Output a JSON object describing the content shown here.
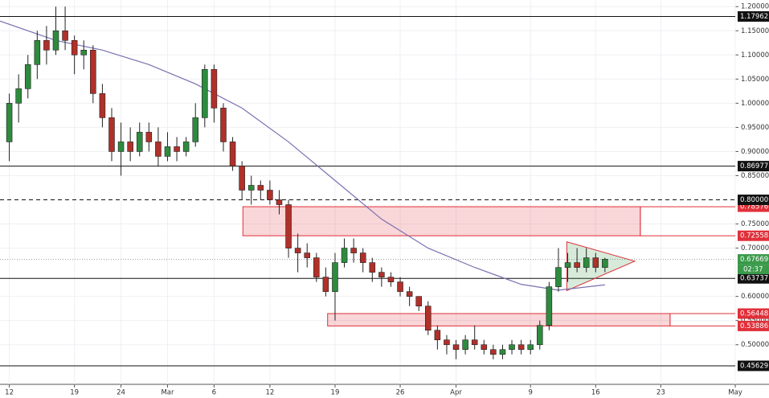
{
  "chart_data": {
    "type": "candlestick",
    "x": [
      0,
      1,
      2,
      3,
      4,
      5,
      6,
      7,
      8,
      9,
      10,
      11,
      12,
      13,
      14,
      15,
      16,
      17,
      18,
      19,
      20,
      21,
      22,
      23,
      24,
      25,
      26,
      27,
      28,
      29,
      30,
      31,
      32,
      33,
      34,
      35,
      36,
      37,
      38,
      39,
      40,
      41,
      42,
      43,
      44,
      45,
      46,
      47,
      48,
      49,
      50,
      51,
      52,
      53,
      54,
      55,
      56,
      57,
      58,
      59,
      60,
      61,
      62,
      63,
      64
    ],
    "open": [
      0.92,
      1.0,
      1.03,
      1.08,
      1.13,
      1.11,
      1.15,
      1.13,
      1.1,
      1.11,
      1.02,
      0.97,
      0.9,
      0.92,
      0.9,
      0.94,
      0.92,
      0.89,
      0.91,
      0.9,
      0.92,
      0.97,
      1.07,
      0.99,
      0.92,
      0.87,
      0.82,
      0.83,
      0.82,
      0.8,
      0.79,
      0.7,
      0.69,
      0.68,
      0.64,
      0.61,
      0.67,
      0.7,
      0.69,
      0.67,
      0.65,
      0.64,
      0.63,
      0.61,
      0.6,
      0.58,
      0.53,
      0.51,
      0.5,
      0.49,
      0.51,
      0.5,
      0.49,
      0.48,
      0.49,
      0.5,
      0.49,
      0.5,
      0.54,
      0.62,
      0.66,
      0.67,
      0.66,
      0.68,
      0.66
    ],
    "high": [
      1.02,
      1.06,
      1.1,
      1.15,
      1.16,
      1.2,
      1.2,
      1.14,
      1.13,
      1.12,
      1.04,
      0.99,
      0.96,
      0.95,
      0.96,
      0.96,
      0.95,
      0.94,
      0.93,
      0.93,
      1.0,
      1.08,
      1.08,
      1.0,
      0.93,
      0.88,
      0.85,
      0.84,
      0.84,
      0.82,
      0.8,
      0.73,
      0.71,
      0.69,
      0.66,
      0.69,
      0.72,
      0.72,
      0.7,
      0.68,
      0.66,
      0.65,
      0.64,
      0.62,
      0.6,
      0.59,
      0.54,
      0.52,
      0.51,
      0.52,
      0.54,
      0.51,
      0.5,
      0.5,
      0.51,
      0.51,
      0.51,
      0.55,
      0.63,
      0.7,
      0.69,
      0.7,
      0.7,
      0.69,
      0.68
    ],
    "low": [
      0.88,
      0.96,
      1.01,
      1.05,
      1.08,
      1.1,
      1.11,
      1.06,
      1.07,
      1.0,
      0.95,
      0.88,
      0.85,
      0.88,
      0.89,
      0.9,
      0.87,
      0.88,
      0.88,
      0.89,
      0.91,
      0.95,
      0.96,
      0.9,
      0.86,
      0.8,
      0.79,
      0.8,
      0.79,
      0.77,
      0.68,
      0.65,
      0.66,
      0.63,
      0.6,
      0.55,
      0.66,
      0.67,
      0.65,
      0.63,
      0.62,
      0.62,
      0.6,
      0.58,
      0.57,
      0.52,
      0.49,
      0.48,
      0.47,
      0.48,
      0.49,
      0.48,
      0.47,
      0.47,
      0.48,
      0.48,
      0.48,
      0.49,
      0.53,
      0.61,
      0.63,
      0.65,
      0.65,
      0.65,
      0.65
    ],
    "close": [
      1.0,
      1.03,
      1.08,
      1.13,
      1.11,
      1.15,
      1.13,
      1.1,
      1.11,
      1.02,
      0.97,
      0.9,
      0.92,
      0.9,
      0.94,
      0.92,
      0.89,
      0.91,
      0.9,
      0.92,
      0.97,
      1.07,
      0.99,
      0.92,
      0.87,
      0.82,
      0.83,
      0.82,
      0.8,
      0.79,
      0.7,
      0.69,
      0.68,
      0.64,
      0.61,
      0.67,
      0.7,
      0.69,
      0.67,
      0.65,
      0.64,
      0.63,
      0.61,
      0.6,
      0.58,
      0.53,
      0.51,
      0.5,
      0.49,
      0.51,
      0.5,
      0.49,
      0.48,
      0.49,
      0.5,
      0.49,
      0.5,
      0.54,
      0.62,
      0.66,
      0.67,
      0.66,
      0.68,
      0.66,
      0.677
    ],
    "up_color": "#2e8b3e",
    "down_color": "#b0302a",
    "moving_average": {
      "color": "#7a6fb0",
      "x": [
        -1,
        5,
        10,
        15,
        20,
        25,
        30,
        35,
        40,
        45,
        50,
        55,
        59,
        64
      ],
      "values": [
        1.17,
        1.13,
        1.11,
        1.08,
        1.04,
        0.99,
        0.92,
        0.84,
        0.76,
        0.7,
        0.66,
        0.625,
        0.613,
        0.624
      ]
    },
    "xlim": [
      -1,
      78
    ],
    "xticks": [
      {
        "value": 0,
        "label": "12"
      },
      {
        "value": 7,
        "label": "19"
      },
      {
        "value": 12,
        "label": "24"
      },
      {
        "value": 17,
        "label": "Mar"
      },
      {
        "value": 22,
        "label": "6"
      },
      {
        "value": 28,
        "label": "12"
      },
      {
        "value": 35,
        "label": "19"
      },
      {
        "value": 42,
        "label": "26"
      },
      {
        "value": 48,
        "label": "Apr"
      },
      {
        "value": 56,
        "label": "9"
      },
      {
        "value": 63,
        "label": "16"
      },
      {
        "value": 70,
        "label": "23"
      },
      {
        "value": 78,
        "label": "May"
      }
    ],
    "ylim": [
      0.418,
      1.2137
    ],
    "yticks": [
      {
        "value": 0.5,
        "label": "0.50000"
      },
      {
        "value": 0.55,
        "label": "0.55000"
      },
      {
        "value": 0.6,
        "label": "0.60000"
      },
      {
        "value": 0.7,
        "label": "0.70000"
      },
      {
        "value": 0.75,
        "label": "0.75000"
      },
      {
        "value": 0.85,
        "label": "0.85000"
      },
      {
        "value": 0.9,
        "label": "0.90000"
      },
      {
        "value": 0.95,
        "label": "0.95000"
      },
      {
        "value": 1.0,
        "label": "1.00000"
      },
      {
        "value": 1.05,
        "label": "1.05000"
      },
      {
        "value": 1.1,
        "label": "1.10000"
      },
      {
        "value": 1.15,
        "label": "1.15000"
      },
      {
        "value": 1.2,
        "label": "1.20000"
      }
    ],
    "grid": true,
    "levels": [
      {
        "value": 1.17962
      },
      {
        "value": 0.86977
      },
      {
        "value": 0.8,
        "label": "0.80000",
        "dashed": true
      },
      {
        "value": 0.63737
      },
      {
        "value": 0.45629
      }
    ],
    "zones": [
      {
        "top": 0.78576,
        "bottom": 0.72558,
        "x": [
          25.1,
          67.8
        ]
      },
      {
        "top": 0.56448,
        "bottom": 0.53886,
        "x": [
          34.2,
          71.0
        ]
      }
    ],
    "zone_color": "#e0303a",
    "triangle": {
      "x": [
        59.9,
        67.2
      ],
      "top": 0.713,
      "bottom": 0.612,
      "apex": 0.673
    },
    "current_price": 0.67669,
    "current_color": "#3a9a4a",
    "countdown": "02:37"
  }
}
